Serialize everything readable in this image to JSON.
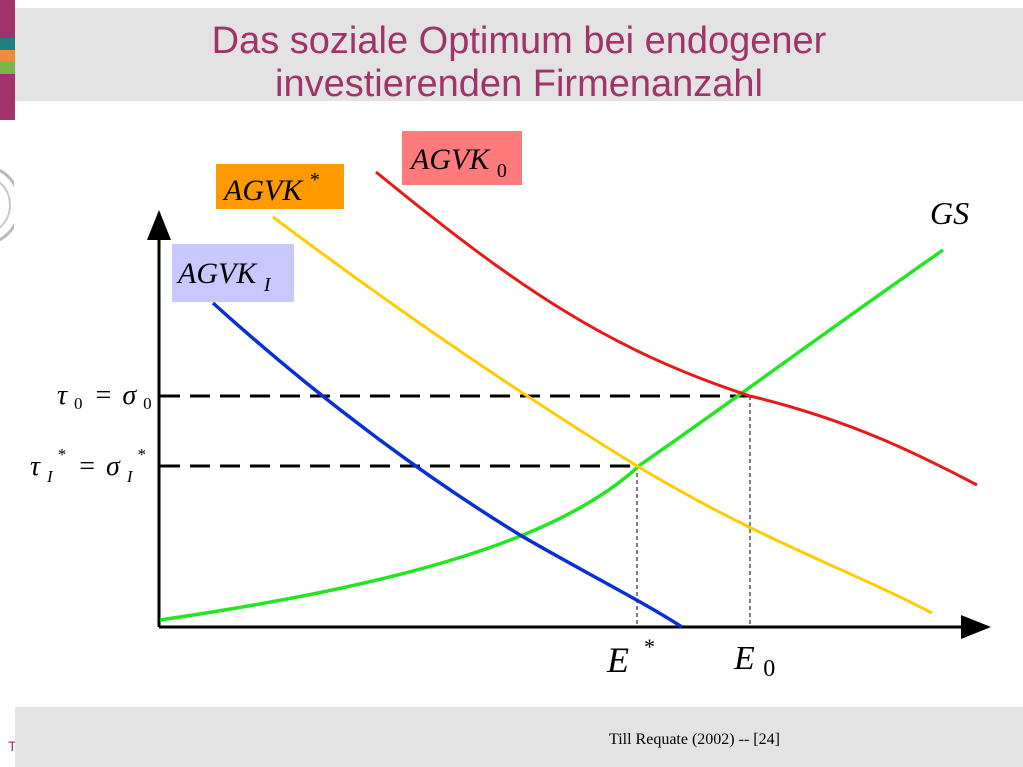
{
  "title": {
    "line1": "Das soziale Optimum bei endogener",
    "line2": "investierenden Firmenanzahl"
  },
  "footer": {
    "credit": "Till Requate (2002) -- [24]"
  },
  "side_letter": "T",
  "colors": {
    "title": "#a0336a",
    "agvk0": "#e31b1b",
    "agvk_star": "#ffcc00",
    "agvk_i": "#0a2fd4",
    "gs": "#22e622",
    "agvk0_label_bg": "#ff7b7b",
    "agvk_star_label_bg": "#ff9900",
    "agvk_i_label_bg": "#c8c8ff"
  },
  "labels": {
    "agvk0": {
      "base": "AGVK",
      "sub": "0"
    },
    "agvk_star": {
      "base": "AGVK",
      "sup": "*"
    },
    "agvk_i": {
      "base": "AGVK",
      "sub": "I"
    },
    "gs": "GS",
    "y_tau0": {
      "tau": "τ",
      "sub0": "0",
      "eq": "=",
      "sigma": "σ",
      "sub1": "0"
    },
    "y_tauI": {
      "tau": "τ",
      "sub0": "I",
      "sup0": "*",
      "eq": "=",
      "sigma": "σ",
      "sub1": "I",
      "sup1": "*"
    },
    "x_estar": {
      "base": "E",
      "sup": "*"
    },
    "x_e0": {
      "base": "E",
      "sub": "0"
    }
  }
}
